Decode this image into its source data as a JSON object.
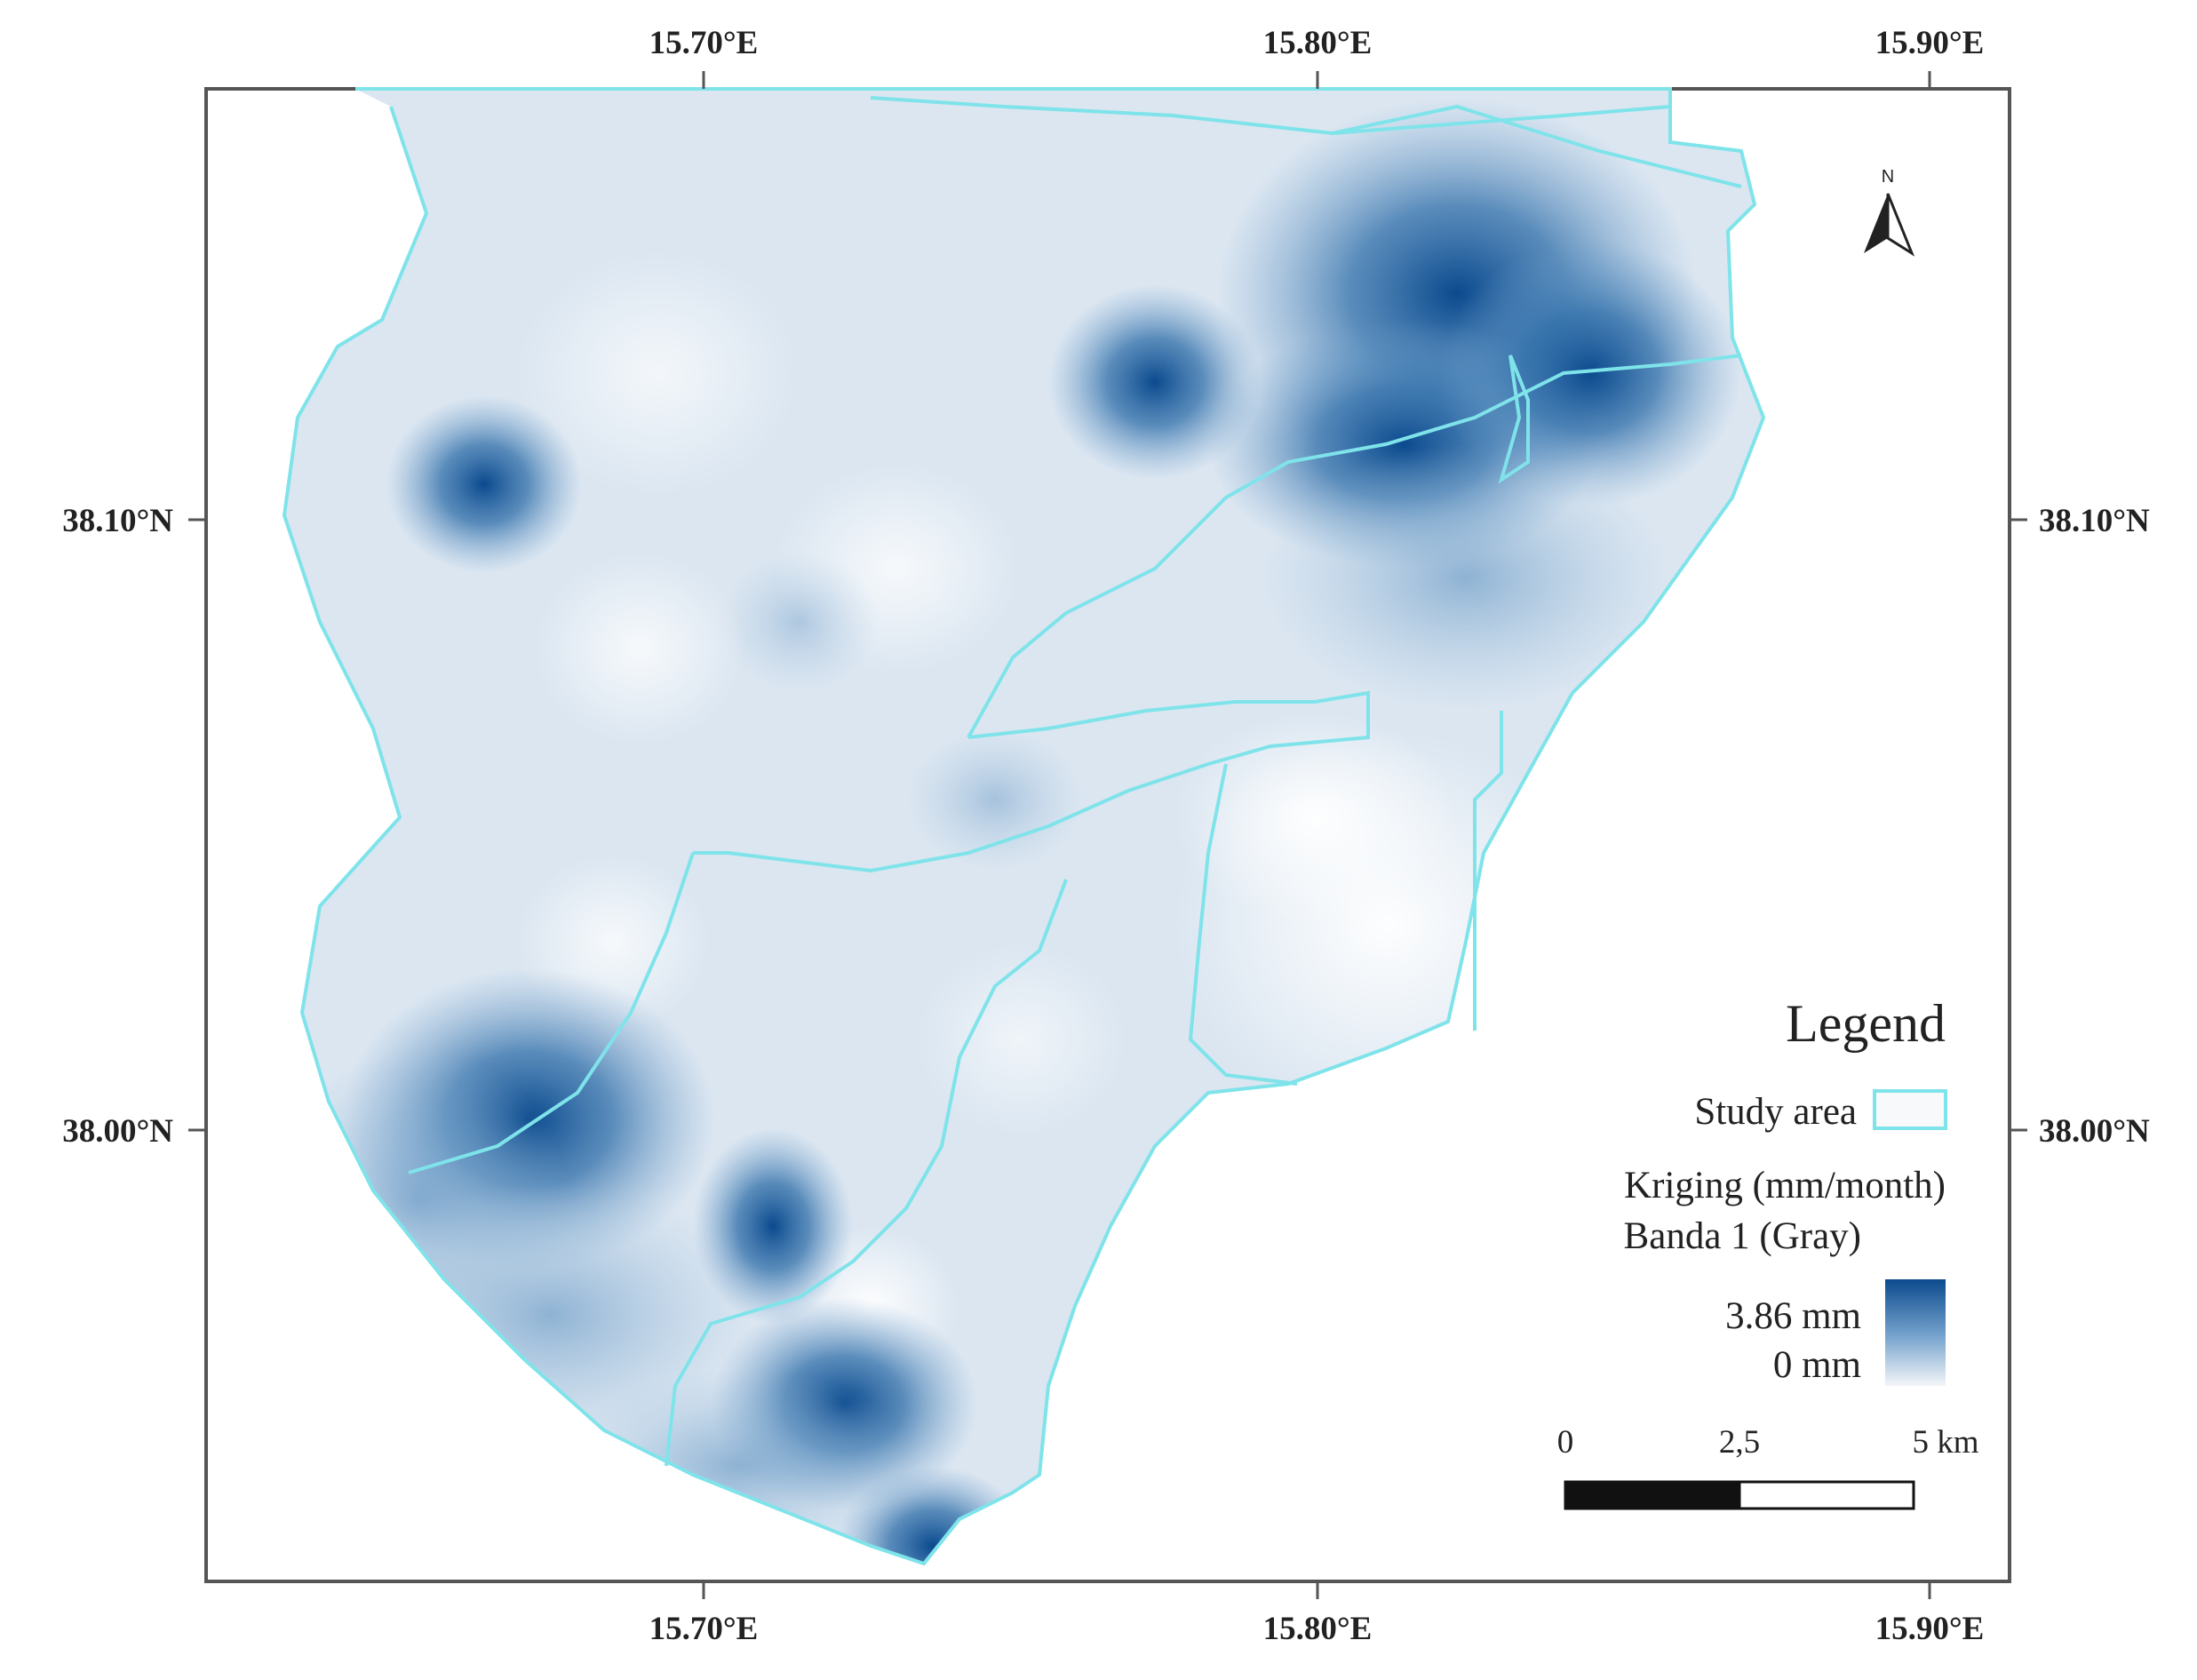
{
  "map": {
    "top_lon_labels": [
      "15.70°E",
      "15.80°E",
      "15.90°E"
    ],
    "bottom_lon_labels": [
      "15.70°E",
      "15.80°E",
      "15.90°E"
    ],
    "left_lat_labels": [
      "38.10°N",
      "38.00°N"
    ],
    "right_lat_labels": [
      "38.10°N",
      "38.00°N"
    ],
    "north_label": "N"
  },
  "legend": {
    "title": "Legend",
    "study_area_label": "Study area",
    "raster_title": "Kriging (mm/month)",
    "raster_band": "Banda 1 (Gray)",
    "max_label": "3.86 mm",
    "min_label": "0 mm"
  },
  "scale_bar": {
    "labels": [
      "0",
      "2,5",
      "5 km"
    ]
  },
  "colors": {
    "high": "#0b4a8e",
    "low": "#f4f6f8",
    "boundary": "#7fe3ea",
    "frame": "#555555"
  }
}
